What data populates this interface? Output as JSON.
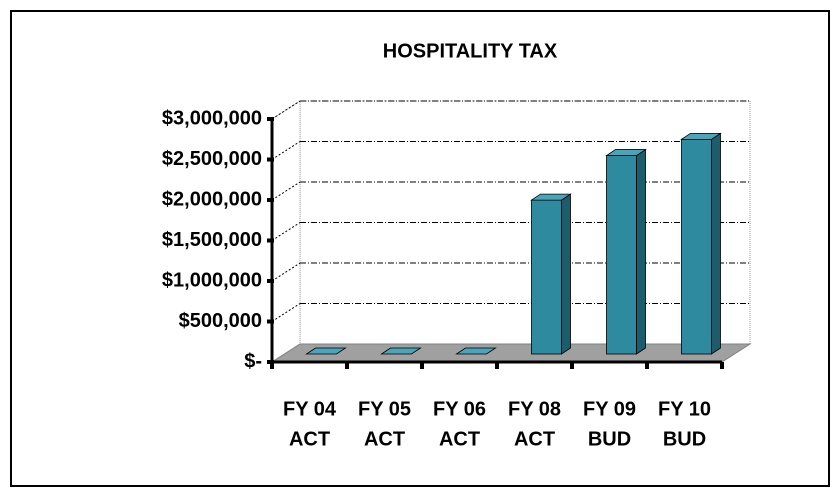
{
  "chart_data": {
    "type": "bar3d",
    "title": "HOSPITALITY TAX",
    "categories": [
      [
        "FY 04",
        "ACT"
      ],
      [
        "FY 05",
        "ACT"
      ],
      [
        "FY 06",
        "ACT"
      ],
      [
        "FY 08",
        "ACT"
      ],
      [
        "FY 09",
        "BUD"
      ],
      [
        "FY 10",
        "BUD"
      ]
    ],
    "values": [
      0,
      0,
      0,
      1900000,
      2450000,
      2650000
    ],
    "color": "#2e8a9e",
    "ylim": [
      0,
      3000000
    ],
    "yticks": [
      {
        "value": 0,
        "label": "$-"
      },
      {
        "value": 500000,
        "label": "$500,000"
      },
      {
        "value": 1000000,
        "label": "$1,000,000"
      },
      {
        "value": 1500000,
        "label": "$1,500,000"
      },
      {
        "value": 2000000,
        "label": "$2,000,000"
      },
      {
        "value": 2500000,
        "label": "$2,500,000"
      },
      {
        "value": 3000000,
        "label": "$3,000,000"
      }
    ],
    "grid": true
  }
}
